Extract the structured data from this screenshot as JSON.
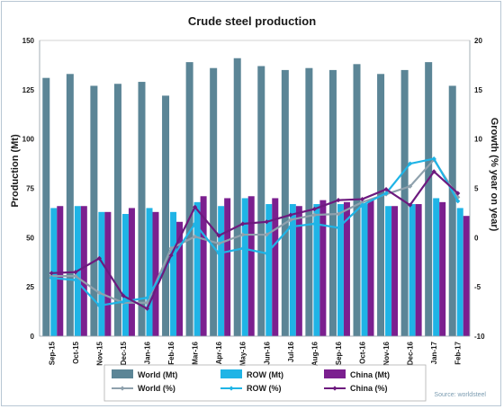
{
  "chart_data": {
    "type": "bar",
    "title": "Crude steel production",
    "ylabel": "Production (Mt)",
    "y2label": "Growth (% year on year)",
    "ylim": [
      0,
      150
    ],
    "yticks": [
      0,
      25,
      50,
      75,
      100,
      125,
      150
    ],
    "y2lim": [
      -10,
      20
    ],
    "y2ticks": [
      -10,
      -5,
      0,
      5,
      10,
      15,
      20
    ],
    "categories": [
      "Sep-15",
      "Oct-15",
      "Nov-15",
      "Dec-15",
      "Jan-16",
      "Feb-16",
      "Mar-16",
      "Apr-16",
      "May-16",
      "Jun-16",
      "Jul-16",
      "Aug-16",
      "Sep-16",
      "Oct-16",
      "Nov-16",
      "Dec-16",
      "Jan-17",
      "Feb-17"
    ],
    "bar_series": [
      {
        "name": "World (Mt)",
        "color": "#5b8596",
        "values": [
          131,
          133,
          127,
          128,
          129,
          122,
          139,
          136,
          141,
          137,
          135,
          136,
          135,
          138,
          133,
          135,
          139,
          127
        ]
      },
      {
        "name": "ROW (Mt)",
        "color": "#1fb4e6",
        "values": [
          65,
          66,
          63,
          62,
          65,
          63,
          68,
          66,
          70,
          67,
          67,
          67,
          67,
          67,
          66,
          67,
          70,
          65
        ]
      },
      {
        "name": "China (Mt)",
        "color": "#7b1f8f",
        "values": [
          66,
          66,
          63,
          65,
          63,
          58,
          71,
          70,
          71,
          70,
          66,
          69,
          68,
          69,
          66,
          67,
          68,
          61
        ]
      }
    ],
    "line_series": [
      {
        "name": "World (%)",
        "color": "#8fa1ad",
        "marker": "diamond",
        "values": [
          -3.9,
          -3.9,
          -5.6,
          -6.6,
          -6.6,
          -1.1,
          0.1,
          -0.6,
          0.3,
          0.3,
          1.8,
          2.3,
          2.4,
          3.6,
          4.4,
          5.2,
          7.9,
          4.1
        ]
      },
      {
        "name": "ROW (%)",
        "color": "#1fb4e6",
        "marker": "diamond",
        "values": [
          -4.1,
          -4.3,
          -6.9,
          -6.5,
          -6.1,
          -2.2,
          1.4,
          -1.6,
          -1.1,
          -1.6,
          1.1,
          1.4,
          1.0,
          3.3,
          4.5,
          7.5,
          8.0,
          3.7
        ]
      },
      {
        "name": "China (%)",
        "color": "#6d1a7e",
        "marker": "diamond",
        "values": [
          -3.6,
          -3.5,
          -2.1,
          -5.9,
          -7.2,
          -1.8,
          3.1,
          0.2,
          1.4,
          1.6,
          2.3,
          2.9,
          3.8,
          3.9,
          4.9,
          3.3,
          6.7,
          4.5
        ]
      }
    ],
    "grid": false,
    "legend_position": "bottom",
    "source": "Source: worldsteel"
  }
}
